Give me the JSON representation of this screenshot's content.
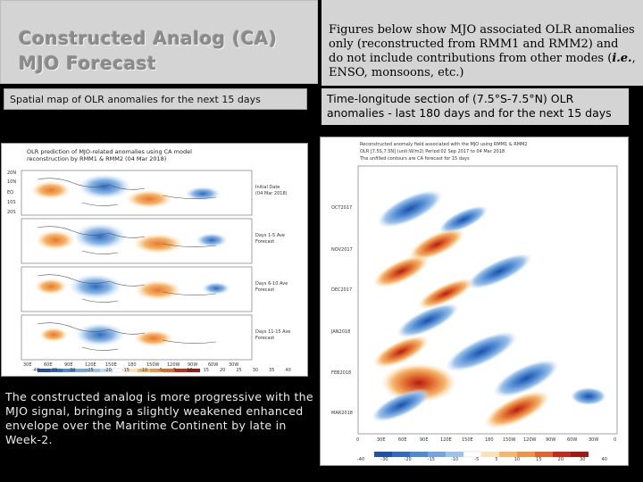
{
  "header": {
    "title_line1": "Constructed Analog (CA)",
    "title_line2": "MJO Forecast",
    "note_part1": "Figures below show MJO associated OLR anomalies only (reconstructed from RMM1 and RMM2) and do not include contributions from other modes (",
    "note_ie": "i.e.",
    "note_part2": ", ENSO, monsoons, etc.)"
  },
  "left": {
    "label": "Spatial map of OLR anomalies for the next 15 days",
    "figure": {
      "title_line1": "OLR prediction of MJO-related anomalies using CA model",
      "title_line2": "reconstruction by RMM1 & RMM2 (04 Mar 2018)",
      "panels": [
        {
          "label1": "Initial Date",
          "label2": "(04 Mar 2018)"
        },
        {
          "label1": "Days 1-5 Ave",
          "label2": "Forecast"
        },
        {
          "label1": "Days 6-10 Ave",
          "label2": "Forecast"
        },
        {
          "label1": "Days 11-15 Ave",
          "label2": "Forecast"
        }
      ],
      "lat_ticks": [
        "20N",
        "10N",
        "EQ",
        "10S",
        "20S"
      ],
      "lon_ticks": [
        "30E",
        "60E",
        "90E",
        "120E",
        "150E",
        "180",
        "150W",
        "120W",
        "90W",
        "60W",
        "30W"
      ],
      "colorbar_ticks": [
        "-40",
        "-35",
        "-30",
        "-25",
        "-20",
        "-15",
        "-10",
        "-5",
        "5",
        "10",
        "15",
        "20",
        "25",
        "30",
        "35",
        "40"
      ]
    },
    "caption": "The constructed analog is more progressive with the MJO signal, bringing a slightly weakened enhanced envelope over the Maritime Continent by late in Week-2."
  },
  "right": {
    "label": "Time-longitude section of (7.5°S-7.5°N) OLR anomalies - last 180 days and for the next 15 days",
    "figure": {
      "title_line1": "Reconstructed anomaly field associated with the MJO using RMM1 & RMM2",
      "title_line2": "OLR [7.5S,7.5N] (unit:W/m2) Period:02 Sep 2017 to 04 Mar 2018",
      "title_line3": "The unfilled contours are CA forecast for 15 days",
      "y_ticks": [
        "OCT2017",
        "NOV2017",
        "DEC2017",
        "JAN2018",
        "FEB2018",
        "MAR2018"
      ],
      "x_ticks": [
        "0",
        "30E",
        "60E",
        "90E",
        "120E",
        "150E",
        "180",
        "150W",
        "120W",
        "90W",
        "60W",
        "30W",
        "0"
      ],
      "colorbar_ticks": [
        "-40",
        "-30",
        "-20",
        "-15",
        "-10",
        "-5",
        "5",
        "10",
        "15",
        "20",
        "30",
        "40"
      ]
    }
  },
  "colors": {
    "panel_bg": "#d4d4d4",
    "page_bg": "#000000",
    "neg_dark": "#1f4fa8",
    "neg_light": "#9cc3ea",
    "pos_light": "#f6b66b",
    "pos_dark": "#c22a1a"
  }
}
